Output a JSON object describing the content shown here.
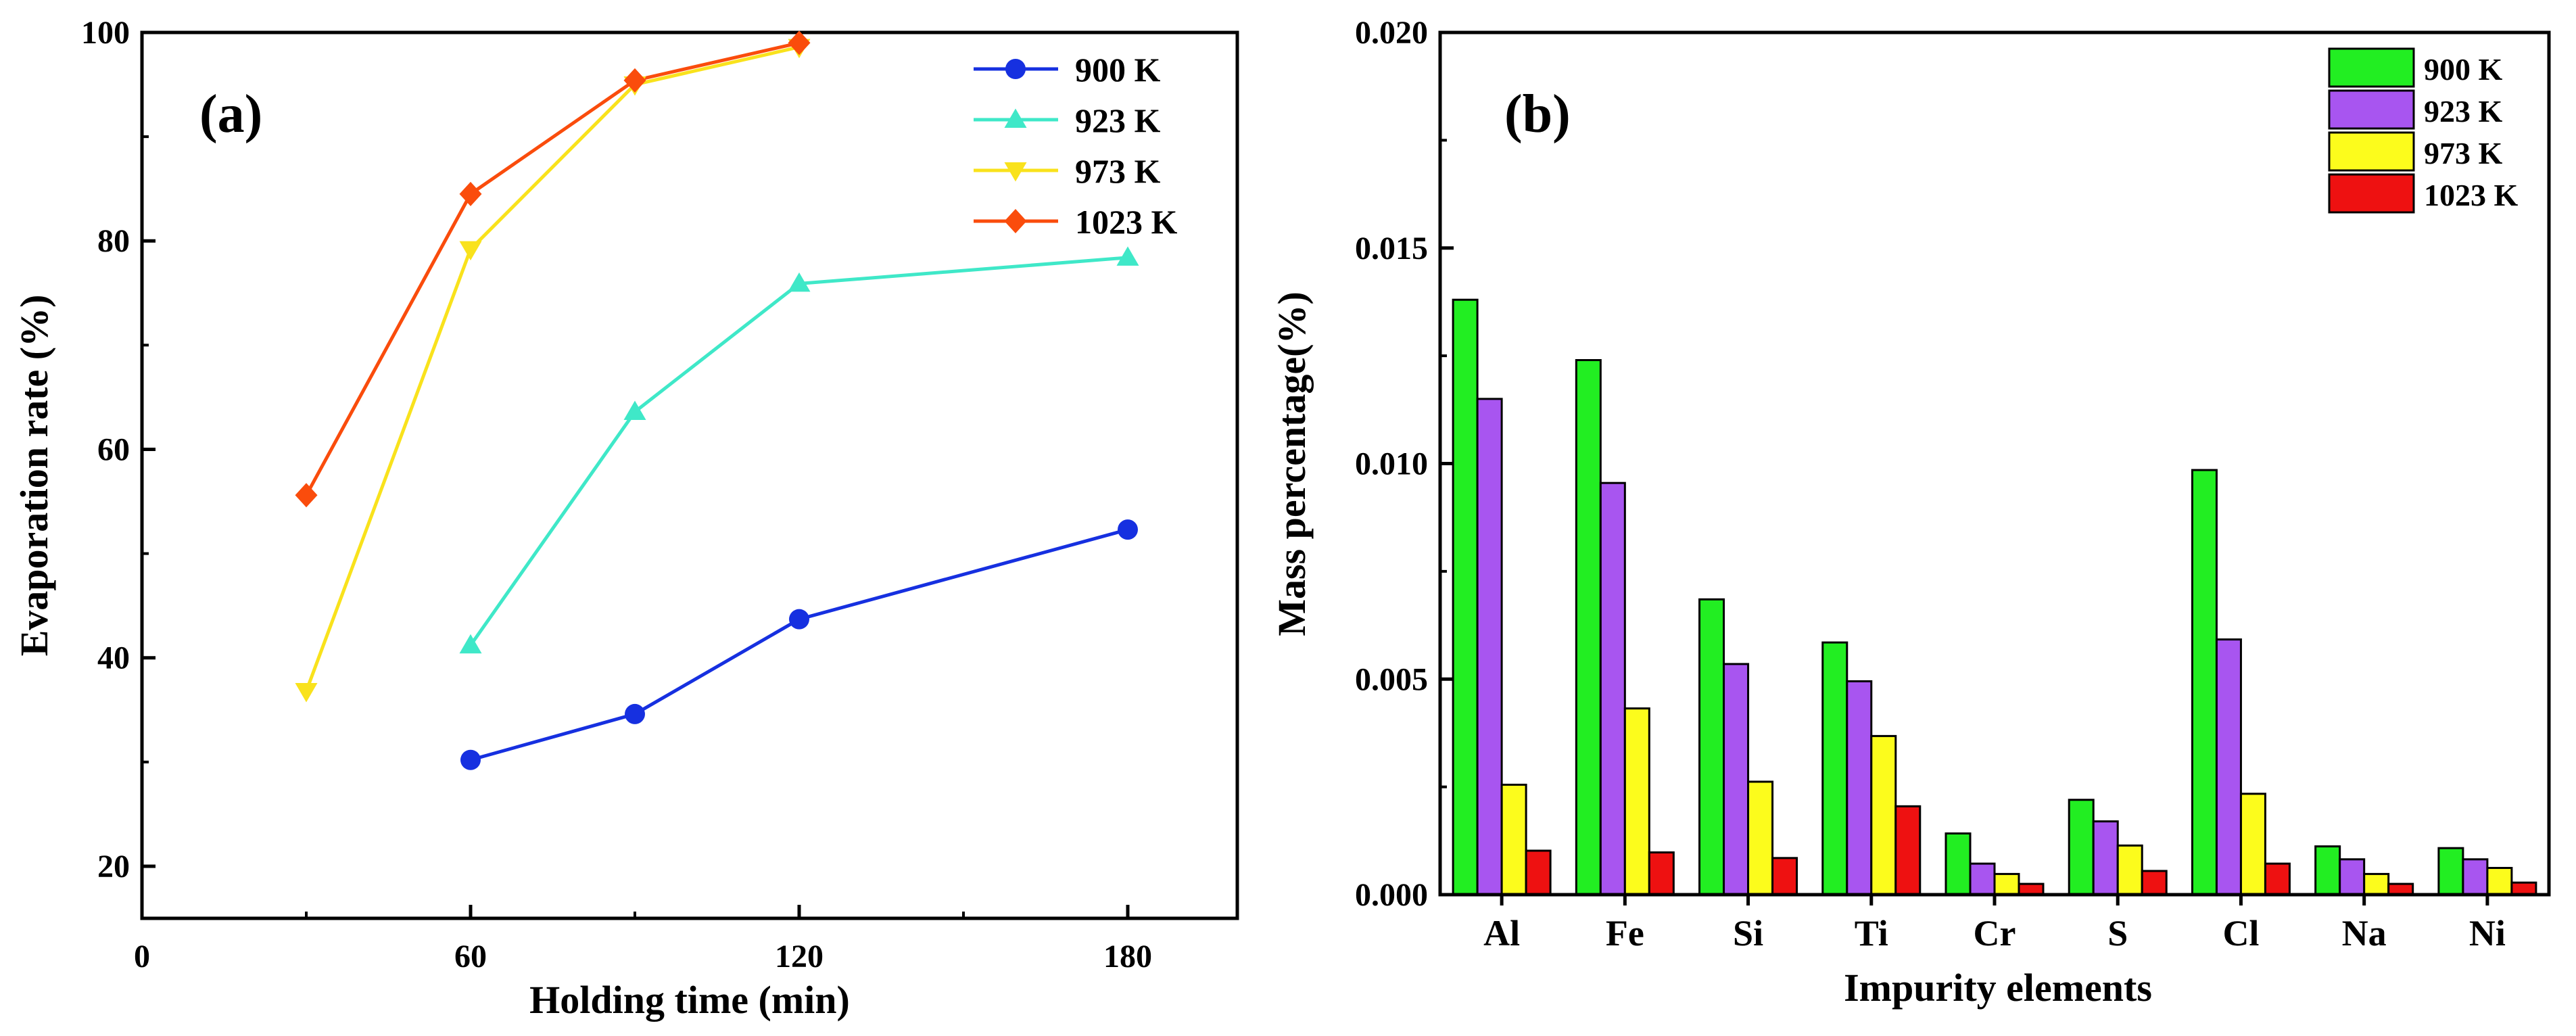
{
  "chart_data": [
    {
      "type": "line",
      "panel_label": "(a)",
      "xlabel": "Holding time (min)",
      "ylabel": "Evaporation rate (%)",
      "x_ticks": [
        "0",
        "60",
        "120",
        "180"
      ],
      "y_ticks": [
        "20",
        "40",
        "60",
        "80",
        "100"
      ],
      "xlim": [
        0,
        200
      ],
      "ylim": [
        15,
        100
      ],
      "legend_position": "top-right",
      "series": [
        {
          "name": "900 K",
          "color": "#1630e0",
          "marker": "circle",
          "x": [
            60,
            90,
            120,
            180
          ],
          "y": [
            30.2,
            34.6,
            43.7,
            52.3
          ]
        },
        {
          "name": "923 K",
          "color": "#3fe8c8",
          "marker": "triangle-up",
          "x": [
            60,
            90,
            120,
            180
          ],
          "y": [
            41.2,
            63.6,
            75.9,
            78.4
          ]
        },
        {
          "name": "973 K",
          "color": "#f9e21c",
          "marker": "triangle-down",
          "x": [
            30,
            60,
            90,
            120
          ],
          "y": [
            36.8,
            79.2,
            95.0,
            98.6
          ]
        },
        {
          "name": "1023 K",
          "color": "#fa4c0c",
          "marker": "diamond",
          "x": [
            30,
            60,
            90,
            120
          ],
          "y": [
            55.6,
            84.5,
            95.4,
            99.0
          ]
        }
      ]
    },
    {
      "type": "bar",
      "panel_label": "(b)",
      "xlabel": "Impurity elements",
      "ylabel": "Mass percentage(%)",
      "categories": [
        "Al",
        "Fe",
        "Si",
        "Ti",
        "Cr",
        "S",
        "Cl",
        "Na",
        "Ni"
      ],
      "y_ticks": [
        "0.000",
        "0.005",
        "0.010",
        "0.015",
        "0.020"
      ],
      "ylim": [
        0,
        0.02
      ],
      "legend_position": "top-right",
      "series": [
        {
          "name": "900 K",
          "color": "#22ee22",
          "values": [
            0.0138,
            0.0124,
            0.00685,
            0.00585,
            0.00142,
            0.0022,
            0.00985,
            0.00112,
            0.00108
          ]
        },
        {
          "name": "923 K",
          "color": "#a855f0",
          "values": [
            0.0115,
            0.00955,
            0.00535,
            0.00495,
            0.00072,
            0.0017,
            0.00592,
            0.00082,
            0.00082
          ]
        },
        {
          "name": "973 K",
          "color": "#fcfc1c",
          "values": [
            0.00255,
            0.00432,
            0.00262,
            0.00368,
            0.00048,
            0.00114,
            0.00234,
            0.00048,
            0.00062
          ]
        },
        {
          "name": "1023 K",
          "color": "#ee1111",
          "values": [
            0.00102,
            0.00098,
            0.00085,
            0.00205,
            0.00025,
            0.00055,
            0.00072,
            0.00025,
            0.00028
          ]
        }
      ]
    }
  ]
}
